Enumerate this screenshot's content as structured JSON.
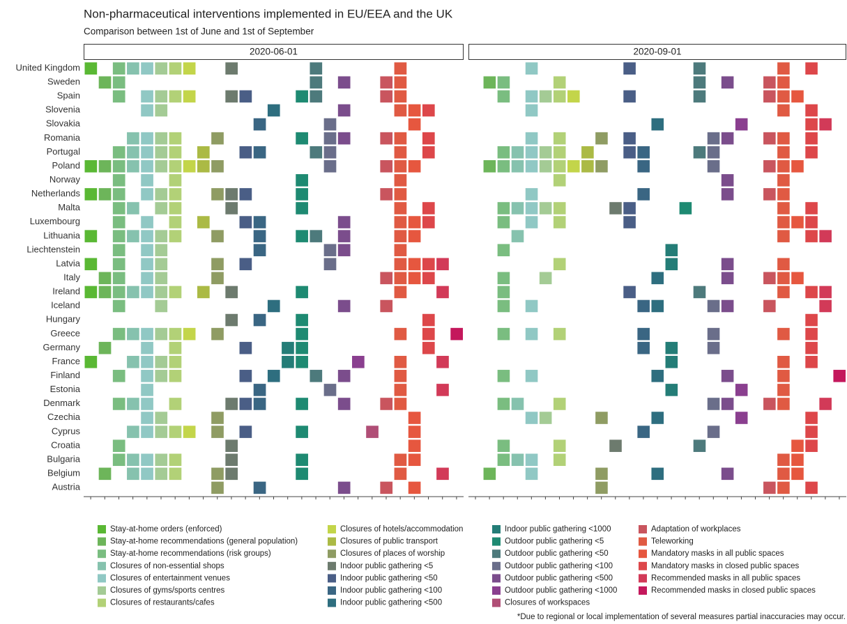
{
  "chart_data": {
    "type": "tile",
    "title": "Non-pharmaceutical interventions implemented in EU/EEA and the UK",
    "subtitle": "Comparison between 1st of June and 1st of September",
    "note": "*Due to regional or local implementation of several measures partial inaccuracies may occur.",
    "facets": [
      "2020-06-01",
      "2020-09-01"
    ],
    "categories": [
      "United Kingdom",
      "Sweden",
      "Spain",
      "Slovenia",
      "Slovakia",
      "Romania",
      "Portugal",
      "Poland",
      "Norway",
      "Netherlands",
      "Malta",
      "Luxembourg",
      "Lithuania",
      "Liechtenstein",
      "Latvia",
      "Italy",
      "Ireland",
      "Iceland",
      "Hungary",
      "Greece",
      "Germany",
      "France",
      "Finland",
      "Estonia",
      "Denmark",
      "Czechia",
      "Cyprus",
      "Croatia",
      "Bulgaria",
      "Belgium",
      "Austria"
    ],
    "series": [
      {
        "name": "Stay-at-home orders (enforced)",
        "color": "#5ab834"
      },
      {
        "name": "Stay-at-home recommendations (general population)",
        "color": "#6db55a"
      },
      {
        "name": "Stay-at-home recommendations (risk groups)",
        "color": "#7abd80"
      },
      {
        "name": "Closures of non-essential shops",
        "color": "#86c2ae"
      },
      {
        "name": "Closures of entertainment venues",
        "color": "#90c8c4"
      },
      {
        "name": "Closures of gyms/sports centres",
        "color": "#a4cb95"
      },
      {
        "name": "Closures of restaurants/cafes",
        "color": "#b2d177"
      },
      {
        "name": "Closures of hotels/accommodation",
        "color": "#c3d54a"
      },
      {
        "name": "Closures of public transport",
        "color": "#abba45"
      },
      {
        "name": "Closures of places of worship",
        "color": "#8f9c63"
      },
      {
        "name": "Indoor public gathering <5",
        "color": "#6d7b6e"
      },
      {
        "name": "Indoor public gathering <50",
        "color": "#4a5e86"
      },
      {
        "name": "Indoor public gathering <100",
        "color": "#3a6683"
      },
      {
        "name": "Indoor public gathering <500",
        "color": "#2e6e7f"
      },
      {
        "name": "Indoor public gathering <1000",
        "color": "#247d77"
      },
      {
        "name": "Outdoor public gathering <5",
        "color": "#1e8a72"
      },
      {
        "name": "Outdoor public gathering <50",
        "color": "#4d7a7c"
      },
      {
        "name": "Outdoor public gathering <100",
        "color": "#6a6e8a"
      },
      {
        "name": "Outdoor public gathering <500",
        "color": "#7b4d8c"
      },
      {
        "name": "Outdoor public gathering <1000",
        "color": "#8a3f8f"
      },
      {
        "name": "Closures of workspaces",
        "color": "#b04e76"
      },
      {
        "name": "Adaptation of workplaces",
        "color": "#c9555e"
      },
      {
        "name": "Teleworking",
        "color": "#e05a43"
      },
      {
        "name": "Mandatory masks in all public spaces",
        "color": "#e6573f"
      },
      {
        "name": "Mandatory masks in closed public spaces",
        "color": "#dd474a"
      },
      {
        "name": "Recommended masks in all public spaces",
        "color": "#d23a58"
      },
      {
        "name": "Recommended masks in closed public spaces",
        "color": "#c4185c"
      }
    ],
    "tiles": [
      [
        [
          0,
          2,
          3,
          4,
          5,
          6,
          7,
          10,
          16,
          22
        ],
        [
          1,
          2,
          16,
          18,
          21,
          22
        ],
        [
          2,
          4,
          5,
          6,
          7,
          10,
          11,
          15,
          16,
          21,
          22
        ],
        [
          4,
          5,
          13,
          18,
          22,
          23,
          24
        ],
        [
          12,
          17,
          23
        ],
        [
          3,
          4,
          5,
          6,
          9,
          15,
          17,
          18,
          21,
          22,
          24
        ],
        [
          2,
          3,
          4,
          5,
          6,
          8,
          11,
          12,
          16,
          17,
          22,
          24
        ],
        [
          0,
          1,
          2,
          3,
          4,
          5,
          6,
          7,
          8,
          9,
          17,
          21,
          22,
          23
        ],
        [
          2,
          4,
          6,
          15,
          22
        ],
        [
          0,
          1,
          2,
          4,
          5,
          6,
          9,
          10,
          11,
          15,
          21,
          22
        ],
        [
          2,
          3,
          5,
          6,
          10,
          15,
          22,
          24
        ],
        [
          2,
          4,
          6,
          8,
          11,
          12,
          18,
          22,
          23,
          24
        ],
        [
          0,
          2,
          3,
          4,
          5,
          6,
          9,
          12,
          15,
          16,
          18,
          22,
          23
        ],
        [
          2,
          4,
          5,
          12,
          17,
          18,
          22
        ],
        [
          0,
          2,
          4,
          5,
          9,
          11,
          17,
          22,
          23,
          24,
          25
        ],
        [
          1,
          2,
          4,
          5,
          9,
          21,
          22,
          23,
          24
        ],
        [
          0,
          1,
          2,
          3,
          4,
          5,
          6,
          8,
          10,
          15,
          22,
          25
        ],
        [
          2,
          5,
          13,
          18,
          21
        ],
        [
          10,
          12,
          15,
          24
        ],
        [
          2,
          3,
          4,
          5,
          6,
          7,
          9,
          15,
          22,
          24,
          26
        ],
        [
          1,
          4,
          6,
          11,
          14,
          15,
          24
        ],
        [
          0,
          3,
          4,
          5,
          6,
          14,
          15,
          19,
          22,
          25
        ],
        [
          2,
          4,
          5,
          6,
          11,
          13,
          16,
          18,
          22
        ],
        [
          4,
          12,
          17,
          22,
          25
        ],
        [
          2,
          3,
          4,
          6,
          10,
          11,
          12,
          15,
          18,
          21,
          22
        ],
        [
          4,
          5,
          9,
          23
        ],
        [
          3,
          4,
          5,
          6,
          7,
          9,
          11,
          15,
          20,
          23
        ],
        [
          2,
          10,
          23
        ],
        [
          2,
          3,
          4,
          5,
          6,
          10,
          15,
          22,
          23
        ],
        [
          1,
          3,
          4,
          5,
          6,
          9,
          10,
          15,
          22,
          25
        ],
        [
          9,
          12,
          18,
          21,
          23
        ]
      ],
      [
        [
          4,
          11,
          16,
          22,
          24
        ],
        [
          1,
          2,
          6,
          16,
          18,
          21,
          22
        ],
        [
          2,
          4,
          5,
          6,
          7,
          11,
          16,
          21,
          22,
          23
        ],
        [
          4,
          22,
          24
        ],
        [
          13,
          19,
          24,
          25
        ],
        [
          4,
          6,
          9,
          11,
          17,
          18,
          21,
          22,
          24
        ],
        [
          2,
          3,
          4,
          5,
          6,
          8,
          11,
          12,
          16,
          17,
          22,
          24
        ],
        [
          1,
          2,
          3,
          4,
          5,
          6,
          7,
          8,
          9,
          12,
          17,
          21,
          22,
          23
        ],
        [
          6,
          18,
          22
        ],
        [
          4,
          12,
          18,
          21,
          22
        ],
        [
          2,
          3,
          4,
          5,
          6,
          10,
          11,
          15,
          22,
          24
        ],
        [
          2,
          4,
          6,
          11,
          22,
          23,
          24
        ],
        [
          3,
          22,
          24,
          25
        ],
        [
          2,
          14
        ],
        [
          6,
          14,
          18,
          22
        ],
        [
          2,
          5,
          13,
          18,
          21,
          22,
          23
        ],
        [
          2,
          11,
          16,
          22,
          24,
          25
        ],
        [
          2,
          4,
          12,
          13,
          17,
          18,
          21,
          25
        ],
        [
          24
        ],
        [
          2,
          4,
          6,
          12,
          17,
          22,
          24
        ],
        [
          12,
          14,
          17,
          24
        ],
        [
          14,
          22,
          24
        ],
        [
          2,
          4,
          13,
          18,
          22,
          26
        ],
        [
          14,
          19,
          22
        ],
        [
          2,
          3,
          6,
          17,
          18,
          21,
          22,
          25
        ],
        [
          4,
          5,
          9,
          13,
          19,
          24
        ],
        [
          12,
          17,
          24
        ],
        [
          2,
          6,
          10,
          16,
          23,
          24
        ],
        [
          2,
          3,
          4,
          6,
          22,
          23
        ],
        [
          1,
          4,
          9,
          13,
          18,
          22,
          23
        ],
        [
          9,
          21,
          22,
          24
        ]
      ]
    ]
  }
}
